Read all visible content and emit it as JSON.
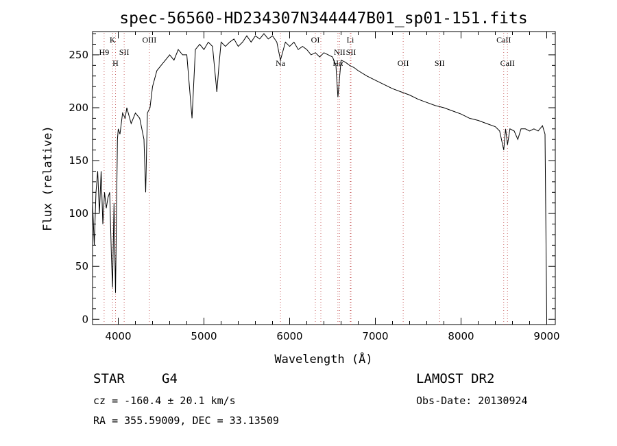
{
  "chart_data": {
    "type": "line",
    "title": "spec-56560-HD234307N344447B01_sp01-151.fits",
    "xlabel": "Wavelength (Å)",
    "ylabel": "Flux (relative)",
    "xlim": [
      3700,
      9100
    ],
    "ylim": [
      -5,
      272
    ],
    "x_ticks": [
      4000,
      5000,
      6000,
      7000,
      8000,
      9000
    ],
    "y_ticks": [
      0,
      50,
      100,
      150,
      200,
      250
    ],
    "grid": false,
    "legend": "none",
    "series": [
      {
        "x": [
          3700,
          3720,
          3740,
          3760,
          3780,
          3800,
          3820,
          3840,
          3860,
          3880,
          3900,
          3920,
          3933,
          3950,
          3968,
          3990,
          4000,
          4020,
          4050,
          4080,
          4100,
          4150,
          4200,
          4250,
          4300,
          4320,
          4340,
          4370,
          4400,
          4450,
          4500,
          4550,
          4600,
          4650,
          4700,
          4750,
          4800,
          4861,
          4900,
          4950,
          5000,
          5050,
          5100,
          5150,
          5175,
          5200,
          5250,
          5300,
          5350,
          5400,
          5450,
          5500,
          5550,
          5600,
          5650,
          5700,
          5750,
          5800,
          5850,
          5893,
          5950,
          6000,
          6050,
          6100,
          6150,
          6200,
          6250,
          6300,
          6350,
          6400,
          6450,
          6500,
          6540,
          6563,
          6600,
          6650,
          6700,
          6750,
          6800,
          6900,
          7000,
          7100,
          7200,
          7300,
          7400,
          7500,
          7600,
          7700,
          7800,
          7900,
          8000,
          8100,
          8200,
          8300,
          8400,
          8450,
          8498,
          8520,
          8542,
          8570,
          8620,
          8662,
          8700,
          8750,
          8800,
          8850,
          8900,
          8950,
          8980,
          9000
        ],
        "values": [
          110,
          70,
          120,
          140,
          100,
          140,
          90,
          120,
          105,
          115,
          120,
          60,
          30,
          110,
          25,
          170,
          180,
          175,
          195,
          190,
          200,
          185,
          195,
          190,
          170,
          120,
          195,
          200,
          220,
          235,
          240,
          245,
          250,
          245,
          255,
          250,
          250,
          190,
          255,
          260,
          255,
          262,
          258,
          215,
          240,
          262,
          258,
          262,
          265,
          258,
          262,
          268,
          262,
          268,
          265,
          270,
          265,
          268,
          262,
          245,
          262,
          258,
          262,
          255,
          258,
          255,
          250,
          252,
          248,
          252,
          250,
          248,
          240,
          210,
          245,
          243,
          240,
          238,
          235,
          230,
          226,
          222,
          218,
          215,
          212,
          208,
          205,
          202,
          200,
          197,
          194,
          190,
          188,
          185,
          182,
          178,
          160,
          180,
          165,
          180,
          178,
          170,
          180,
          180,
          178,
          180,
          178,
          183,
          175,
          0
        ]
      }
    ],
    "lines": [
      {
        "label": "H9",
        "x": 3835,
        "row": "top"
      },
      {
        "label": "K",
        "x": 3934,
        "row": "upper"
      },
      {
        "label": "H",
        "x": 3968,
        "row": "low"
      },
      {
        "label": "SII",
        "x": 4069,
        "row": "top"
      },
      {
        "label": "OIII",
        "x": 4363,
        "row": "upper"
      },
      {
        "label": "Na",
        "x": 5893,
        "row": "low"
      },
      {
        "label": "OI",
        "x": 6300,
        "row": "upper"
      },
      {
        "label": "OI",
        "x": 6364,
        "row": "none"
      },
      {
        "label": "Hα",
        "x": 6563,
        "row": "low"
      },
      {
        "label": "NII",
        "x": 6583,
        "row": "top"
      },
      {
        "label": "Li",
        "x": 6708,
        "row": "upper"
      },
      {
        "label": "SII",
        "x": 6716,
        "row": "top"
      },
      {
        "label": "OII",
        "x": 7325,
        "row": "low"
      },
      {
        "label": "SII",
        "x": 7750,
        "row": "low"
      },
      {
        "label": "CaII",
        "x": 8498,
        "row": "upper"
      },
      {
        "label": "CaII",
        "x": 8542,
        "row": "low"
      }
    ]
  },
  "info": {
    "object_class": "STAR",
    "subclass": "G4",
    "survey": "LAMOST DR2",
    "redshift": "cz = -160.4 ± 20.1 km/s",
    "obs_date": "Obs-Date: 20130924",
    "coords": "RA = 355.59009, DEC =  33.13509"
  }
}
